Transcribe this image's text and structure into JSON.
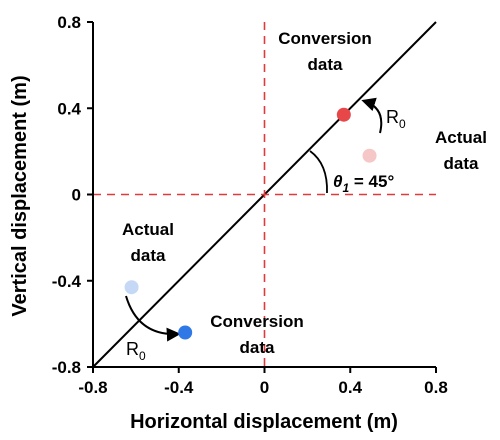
{
  "chart_data": {
    "type": "scatter",
    "xlabel": "Horizontal displacement (m)",
    "ylabel": "Vertical displacement (m)",
    "xlim": [
      -0.8,
      0.8
    ],
    "ylim": [
      -0.8,
      0.8
    ],
    "x_ticks": [
      "-0.8",
      "-0.4",
      "0",
      "0.4",
      "0.8"
    ],
    "y_ticks": [
      "-0.8",
      "-0.4",
      "0",
      "0.4",
      "0.8"
    ],
    "reference_lines": [
      {
        "kind": "diagonal",
        "from": [
          -0.8,
          -0.8
        ],
        "to": [
          0.8,
          0.8
        ],
        "color": "#000000",
        "style": "solid"
      },
      {
        "kind": "horizontal",
        "y": 0,
        "color": "#e03a3a",
        "style": "dashed"
      },
      {
        "kind": "vertical",
        "x": 0,
        "color": "#e03a3a",
        "style": "dashed"
      }
    ],
    "points": [
      {
        "x": 0.37,
        "y": 0.37,
        "color": "#e8474a"
      },
      {
        "x": 0.49,
        "y": 0.18,
        "color": "#f5c7c6"
      },
      {
        "x": -0.62,
        "y": -0.43,
        "color": "#c5d8f5"
      },
      {
        "x": -0.37,
        "y": -0.64,
        "color": "#2f78e6"
      }
    ],
    "annotations": {
      "conversion_upper": [
        "Conversion",
        "data"
      ],
      "actual_right": [
        "Actual",
        "data"
      ],
      "actual_left": [
        "Actual",
        "data"
      ],
      "conversion_lower": [
        "Conversion",
        "data"
      ],
      "rotation_label": "R",
      "rotation_subscript": "0",
      "theta_symbol": "θ",
      "theta_subscript": "1",
      "theta_value": " = 45°"
    }
  }
}
